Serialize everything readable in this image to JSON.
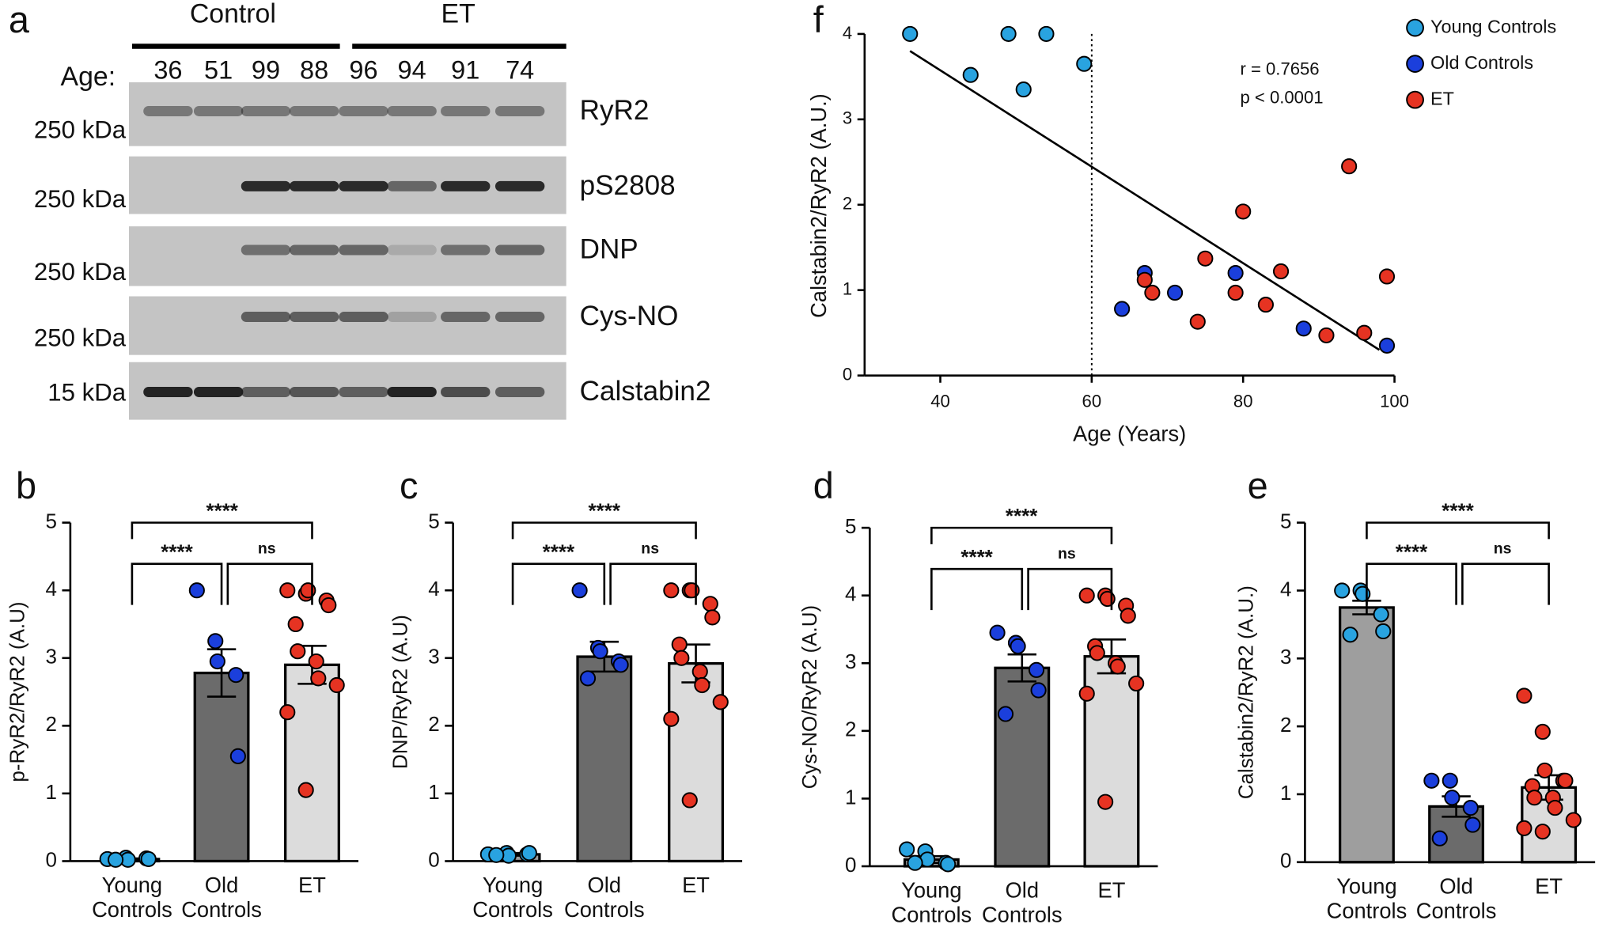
{
  "blot": {
    "panel": "a",
    "groups": [
      "Control",
      "ET"
    ],
    "age_label": "Age:",
    "ages": [
      36,
      51,
      99,
      88,
      96,
      94,
      91,
      74
    ],
    "rows": [
      {
        "name": "RyR2",
        "marker": "250 kDa"
      },
      {
        "name": "pS2808",
        "marker": "250 kDa"
      },
      {
        "name": "DNP",
        "marker": "250 kDa"
      },
      {
        "name": "Cys-NO",
        "marker": "250 kDa"
      },
      {
        "name": "Calstabin2",
        "marker": "15 kDa"
      }
    ]
  },
  "chart_data": [
    {
      "type": "bar",
      "panel": "b",
      "ylabel": "p-RyR2/RyR2 (A.U)",
      "categories": [
        [
          "Young",
          "Controls"
        ],
        [
          "Old",
          "Controls"
        ],
        [
          "ET"
        ]
      ],
      "values": [
        0.03,
        2.78,
        2.9
      ],
      "errors": [
        0.01,
        0.35,
        0.28
      ],
      "colors": [
        "#9e9e9e",
        "#6b6b6b",
        "#dcdcdc"
      ],
      "point_colors": [
        "#29a3e0",
        "#1b3fdc",
        "#e63322"
      ],
      "points": [
        [
          0.03,
          0.05,
          0.02,
          0.04,
          0.03,
          0.02
        ],
        [
          4.0,
          3.25,
          2.95,
          2.75,
          1.55
        ],
        [
          4.0,
          3.95,
          4.0,
          3.85,
          3.78,
          3.5,
          3.1,
          2.95,
          2.7,
          2.6,
          2.2,
          1.05
        ]
      ],
      "significance": [
        "****",
        "****",
        "ns"
      ],
      "ylim": [
        0,
        5
      ],
      "yticks": [
        0,
        1,
        2,
        3,
        4,
        5
      ]
    },
    {
      "type": "bar",
      "panel": "c",
      "ylabel": "DNP/RyR2 (A.U)",
      "categories": [
        [
          "Young",
          "Controls"
        ],
        [
          "Old",
          "Controls"
        ],
        [
          "ET"
        ]
      ],
      "values": [
        0.1,
        3.02,
        2.92
      ],
      "errors": [
        0.02,
        0.22,
        0.28
      ],
      "colors": [
        "#9e9e9e",
        "#6b6b6b",
        "#dcdcdc"
      ],
      "point_colors": [
        "#29a3e0",
        "#1b3fdc",
        "#e63322"
      ],
      "points": [
        [
          0.1,
          0.12,
          0.08,
          0.1,
          0.12,
          0.09
        ],
        [
          4.0,
          3.15,
          3.1,
          2.95,
          2.9,
          2.7
        ],
        [
          4.0,
          4.0,
          4.0,
          3.8,
          3.6,
          3.2,
          3.0,
          2.8,
          2.6,
          2.35,
          2.1,
          0.9
        ]
      ],
      "significance": [
        "****",
        "****",
        "ns"
      ],
      "ylim": [
        0,
        5
      ],
      "yticks": [
        0,
        1,
        2,
        3,
        4,
        5
      ]
    },
    {
      "type": "bar",
      "panel": "d",
      "ylabel": "Cys-NO/RyR2 (A.U)",
      "categories": [
        [
          "Young",
          "Controls"
        ],
        [
          "Old",
          "Controls"
        ],
        [
          "ET"
        ]
      ],
      "values": [
        0.1,
        2.93,
        3.1
      ],
      "errors": [
        0.05,
        0.2,
        0.25
      ],
      "colors": [
        "#9e9e9e",
        "#6b6b6b",
        "#dcdcdc"
      ],
      "point_colors": [
        "#29a3e0",
        "#1b3fdc",
        "#e63322"
      ],
      "points": [
        [
          0.25,
          0.22,
          0.1,
          0.05,
          0.03,
          0.05
        ],
        [
          3.45,
          3.3,
          3.25,
          2.9,
          2.6,
          2.25
        ],
        [
          4.0,
          4.0,
          3.95,
          3.85,
          3.7,
          3.25,
          3.15,
          3.0,
          2.95,
          2.7,
          2.55,
          0.95
        ]
      ],
      "significance": [
        "****",
        "****",
        "ns"
      ],
      "ylim": [
        0,
        5
      ],
      "yticks": [
        0,
        1,
        2,
        3,
        4,
        5
      ]
    },
    {
      "type": "bar",
      "panel": "e",
      "ylabel": "Calstabin2/RyR2 (A.U.)",
      "categories": [
        [
          "Young",
          "Controls"
        ],
        [
          "Old",
          "Controls"
        ],
        [
          "ET"
        ]
      ],
      "values": [
        3.75,
        0.82,
        1.1
      ],
      "errors": [
        0.1,
        0.15,
        0.18
      ],
      "colors": [
        "#9e9e9e",
        "#6b6b6b",
        "#dcdcdc"
      ],
      "point_colors": [
        "#29a3e0",
        "#1b3fdc",
        "#e63322"
      ],
      "points": [
        [
          4.0,
          4.0,
          3.95,
          3.65,
          3.4,
          3.35
        ],
        [
          1.2,
          1.2,
          0.95,
          0.8,
          0.55,
          0.35
        ],
        [
          2.45,
          1.92,
          1.35,
          1.2,
          1.2,
          1.12,
          0.95,
          0.95,
          0.8,
          0.62,
          0.5,
          0.45
        ]
      ],
      "significance": [
        "****",
        "****",
        "ns"
      ],
      "ylim": [
        0,
        5
      ],
      "yticks": [
        0,
        1,
        2,
        3,
        4,
        5
      ]
    },
    {
      "type": "scatter",
      "panel": "f",
      "xlabel": "Age (Years)",
      "ylabel": "Calstabin2/RyR2 (A.U.)",
      "xlim": [
        30,
        100
      ],
      "ylim": [
        0,
        4
      ],
      "xticks": [
        40,
        60,
        80,
        100
      ],
      "yticks": [
        0,
        1,
        2,
        3,
        4
      ],
      "series": [
        {
          "name": "Young Controls",
          "color": "#29a3e0",
          "x": [
            36,
            44,
            49,
            51,
            54,
            59
          ],
          "y": [
            4.0,
            3.52,
            4.0,
            3.35,
            4.0,
            3.65
          ]
        },
        {
          "name": "Old Controls",
          "color": "#1b3fdc",
          "x": [
            64,
            67,
            71,
            79,
            88,
            99
          ],
          "y": [
            0.78,
            1.2,
            0.97,
            1.2,
            0.55,
            0.35
          ]
        },
        {
          "name": "ET",
          "color": "#e63322",
          "x": [
            67,
            68,
            74,
            75,
            79,
            80,
            83,
            85,
            91,
            94,
            96,
            99
          ],
          "y": [
            1.12,
            0.97,
            0.63,
            1.37,
            0.97,
            1.92,
            0.83,
            1.22,
            0.47,
            2.45,
            0.5,
            1.16
          ]
        }
      ],
      "fit": {
        "x": [
          36,
          98
        ],
        "y": [
          3.8,
          0.3
        ]
      },
      "reference_x": 60,
      "annotations": [
        "r = 0.7656",
        "p < 0.0001"
      ]
    }
  ]
}
